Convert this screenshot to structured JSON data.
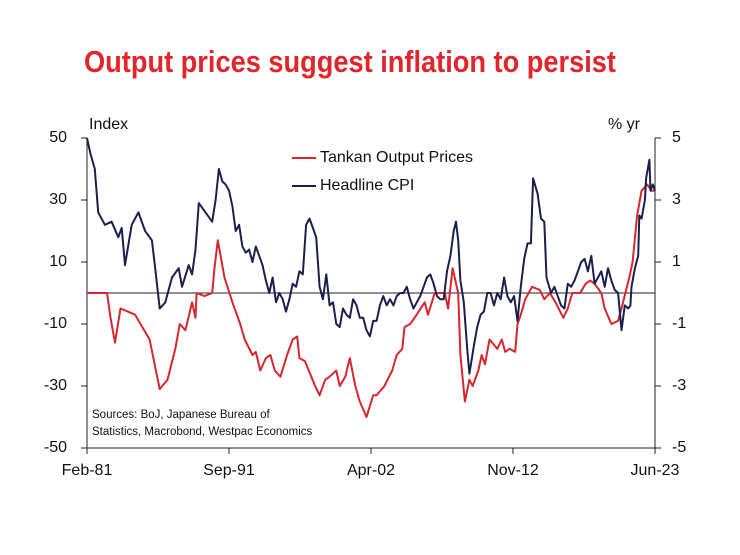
{
  "chart_data": {
    "type": "line",
    "title": "Output prices suggest inflation to persist",
    "y_label": "Index",
    "y2_label": "% yr",
    "source": [
      "Sources: BoJ, Japanese Bureau of",
      "Statistics, Macrobond, Westpac Economics"
    ],
    "xlim": [
      "Feb-81",
      "Jun-23"
    ],
    "xticks": [
      "Feb-81",
      "Sep-91",
      "Apr-02",
      "Nov-12",
      "Jun-23"
    ],
    "ylim": [
      -50,
      50
    ],
    "yticks": [
      -50,
      -30,
      -10,
      10,
      30,
      50
    ],
    "y2lim": [
      -5,
      5
    ],
    "y2ticks": [
      -5,
      -3,
      -1,
      1,
      3,
      5
    ],
    "hline": 0,
    "legend": "top",
    "series": [
      {
        "name": "Tankan Output Prices",
        "color": "#d7262e",
        "x": [
          "Feb-81",
          "Aug-82",
          "Nov-82",
          "Mar-83",
          "Aug-83",
          "Sep-84",
          "Oct-85",
          "Jul-86",
          "Feb-87",
          "Sep-87",
          "Jan-88",
          "Jun-88",
          "Dec-88",
          "Mar-89",
          "Apr-89",
          "Nov-89",
          "Jun-90",
          "Aug-90",
          "Nov-90",
          "May-91",
          "Dec-91",
          "Jul-92",
          "Nov-92",
          "Jun-93",
          "Sep-93",
          "Jan-94",
          "Jun-94",
          "Oct-94",
          "Feb-95",
          "Jul-95",
          "Jan-96",
          "Jun-96",
          "Oct-96",
          "Dec-96",
          "May-97",
          "Feb-98",
          "Jun-98",
          "Nov-98",
          "Mar-99",
          "Sep-99",
          "Dec-99",
          "May-00",
          "Sep-00",
          "Feb-01",
          "Jun-01",
          "Dec-01",
          "Jun-02",
          "Sep-02",
          "Apr-03",
          "Nov-03",
          "Mar-04",
          "Aug-04",
          "Oct-04",
          "Mar-05",
          "Jul-05",
          "Apr-06",
          "Jul-06",
          "Jan-07",
          "Oct-07",
          "Jan-08",
          "May-08",
          "Oct-08",
          "Dec-08",
          "Apr-09",
          "Aug-09",
          "Nov-09",
          "Apr-10",
          "Jul-10",
          "Oct-10",
          "Feb-11",
          "Sep-11",
          "Jan-12",
          "Apr-12",
          "Aug-12",
          "Jan-13",
          "Mar-13",
          "Jun-13",
          "Oct-13",
          "Apr-14",
          "Nov-14",
          "Mar-15",
          "Aug-15",
          "Jan-16",
          "Aug-16",
          "Dec-16",
          "Apr-17",
          "Nov-17",
          "Apr-18",
          "Aug-18",
          "Dec-18",
          "Jun-19",
          "Sep-19",
          "Mar-20",
          "Sep-20",
          "Dec-20",
          "Jul-21",
          "Oct-21",
          "Feb-22",
          "Jun-22",
          "Nov-22",
          "Mar-23",
          "Jun-23"
        ],
        "values": [
          0,
          0,
          -8,
          -16,
          -5,
          -7,
          -15,
          -31,
          -28,
          -18,
          -10,
          -12,
          -3,
          -8,
          0,
          -1,
          0,
          8,
          17,
          5,
          -3,
          -10,
          -15,
          -20,
          -19,
          -25,
          -21,
          -20,
          -25,
          -27,
          -20,
          -15,
          -14,
          -21,
          -22,
          -30,
          -33,
          -28,
          -27,
          -25,
          -30,
          -27,
          -21,
          -30,
          -35,
          -40,
          -33,
          -33,
          -30,
          -25,
          -20,
          -18,
          -11,
          -10,
          -8,
          -3,
          -7,
          0,
          0,
          -5,
          8,
          0,
          -20,
          -35,
          -28,
          -30,
          -25,
          -20,
          -23,
          -15,
          -18,
          -15,
          -19,
          -18,
          -19,
          -10,
          -7,
          -2,
          2,
          1,
          -2,
          0,
          -3,
          -8,
          -5,
          0,
          0,
          3,
          4,
          3,
          0,
          -5,
          -10,
          -9,
          -5,
          5,
          10,
          25,
          33,
          35,
          33,
          33
        ]
      },
      {
        "name": "Headline CPI",
        "color": "#1b1f4d",
        "axis": "y2",
        "x": [
          "Feb-81",
          "May-81",
          "Sep-81",
          "Dec-81",
          "Jun-82",
          "Dec-82",
          "Jun-83",
          "Sep-83",
          "Dec-83",
          "Jun-84",
          "Dec-84",
          "Jun-85",
          "Dec-85",
          "Mar-86",
          "Jul-86",
          "Dec-86",
          "Jun-87",
          "Dec-87",
          "Mar-88",
          "Sep-88",
          "Dec-88",
          "Mar-89",
          "Jun-89",
          "Dec-89",
          "Jun-90",
          "Sep-90",
          "Dec-90",
          "Mar-91",
          "Jun-91",
          "Sep-91",
          "Dec-91",
          "Mar-92",
          "Jun-92",
          "Sep-92",
          "Dec-92",
          "Mar-93",
          "Jun-93",
          "Sep-93",
          "Dec-93",
          "Mar-94",
          "Jun-94",
          "Sep-94",
          "Dec-94",
          "Mar-95",
          "Jun-95",
          "Sep-95",
          "Dec-95",
          "Mar-96",
          "Jun-96",
          "Sep-96",
          "Dec-96",
          "Mar-97",
          "Jun-97",
          "Sep-97",
          "Dec-97",
          "Mar-98",
          "Jun-98",
          "Sep-98",
          "Dec-98",
          "Mar-99",
          "Jun-99",
          "Sep-99",
          "Dec-99",
          "Mar-00",
          "Jun-00",
          "Sep-00",
          "Dec-00",
          "Mar-01",
          "Jun-01",
          "Sep-01",
          "Dec-01",
          "Mar-02",
          "Jun-02",
          "Sep-02",
          "Dec-02",
          "Mar-03",
          "Jun-03",
          "Sep-03",
          "Dec-03",
          "Mar-04",
          "Jun-04",
          "Sep-04",
          "Dec-04",
          "Mar-05",
          "Jun-05",
          "Sep-05",
          "Dec-05",
          "Mar-06",
          "Jun-06",
          "Sep-06",
          "Dec-06",
          "Mar-07",
          "Jun-07",
          "Sep-07",
          "Dec-07",
          "Mar-08",
          "Jun-08",
          "Aug-08",
          "Oct-08",
          "Dec-08",
          "Mar-09",
          "Jun-09",
          "Aug-09",
          "Dec-09",
          "Mar-10",
          "Jun-10",
          "Sep-10",
          "Dec-10",
          "Mar-11",
          "Jun-11",
          "Sep-11",
          "Dec-11",
          "Mar-12",
          "Jun-12",
          "Sep-12",
          "Dec-12",
          "Mar-13",
          "Jun-13",
          "Sep-13",
          "Dec-13",
          "Mar-14",
          "May-14",
          "Sep-14",
          "Dec-14",
          "Mar-15",
          "May-15",
          "Sep-15",
          "Dec-15",
          "Mar-16",
          "Jun-16",
          "Sep-16",
          "Dec-16",
          "Mar-17",
          "Jun-17",
          "Sep-17",
          "Dec-17",
          "Mar-18",
          "Jun-18",
          "Sep-18",
          "Dec-18",
          "Mar-19",
          "Jun-19",
          "Sep-19",
          "Dec-19",
          "Mar-20",
          "Jun-20",
          "Sep-20",
          "Dec-20",
          "Mar-21",
          "Jun-21",
          "Aug-21",
          "Sep-21",
          "Dec-21",
          "Mar-22",
          "Apr-22",
          "Jun-22",
          "Sep-22",
          "Oct-22",
          "Jan-23",
          "Feb-23",
          "Apr-23",
          "Jun-23"
        ],
        "values": [
          5.0,
          4.5,
          4.0,
          2.6,
          2.2,
          2.3,
          1.8,
          2.1,
          0.9,
          2.2,
          2.6,
          2.0,
          1.7,
          0.8,
          -0.5,
          -0.3,
          0.5,
          0.8,
          0.2,
          0.9,
          0.6,
          1.4,
          2.9,
          2.6,
          2.3,
          3.0,
          4.0,
          3.6,
          3.5,
          3.3,
          2.8,
          2.0,
          2.2,
          1.5,
          1.3,
          1.4,
          1.0,
          1.5,
          1.2,
          0.9,
          0.4,
          0.0,
          0.5,
          -0.3,
          0.0,
          -0.2,
          -0.6,
          -0.2,
          0.3,
          0.2,
          0.7,
          0.6,
          2.2,
          2.4,
          2.1,
          1.8,
          0.2,
          -0.2,
          0.6,
          -0.4,
          -0.3,
          -1.0,
          -1.1,
          -0.5,
          -0.7,
          -0.8,
          -0.2,
          -0.4,
          -0.8,
          -0.8,
          -1.2,
          -1.4,
          -0.9,
          -0.9,
          -0.4,
          -0.1,
          -0.4,
          -0.2,
          -0.4,
          -0.1,
          0.0,
          0.0,
          0.2,
          -0.2,
          -0.5,
          -0.3,
          -0.1,
          0.2,
          0.5,
          0.6,
          0.3,
          -0.1,
          -0.2,
          -0.2,
          0.7,
          1.2,
          2.0,
          2.3,
          1.7,
          0.4,
          -0.3,
          -1.8,
          -2.6,
          -1.7,
          -1.1,
          -0.7,
          -0.6,
          0.0,
          0.0,
          -0.4,
          0.0,
          -0.2,
          0.5,
          -0.1,
          -0.3,
          -0.1,
          -0.9,
          0.2,
          1.1,
          1.6,
          1.6,
          3.7,
          3.2,
          2.4,
          2.3,
          0.5,
          0.0,
          0.2,
          -0.1,
          -0.4,
          -0.5,
          0.3,
          0.2,
          0.4,
          0.7,
          1.0,
          1.1,
          0.7,
          1.2,
          0.3,
          0.5,
          0.7,
          0.2,
          0.8,
          0.4,
          0.1,
          0.0,
          -1.2,
          -0.4,
          -0.5,
          -0.4,
          0.2,
          0.8,
          1.2,
          2.5,
          2.4,
          3.0,
          3.7,
          4.3,
          3.3,
          3.5,
          3.3
        ]
      }
    ]
  }
}
